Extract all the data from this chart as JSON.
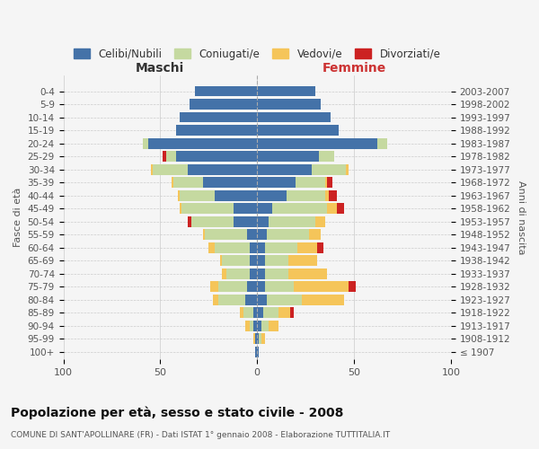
{
  "age_groups": [
    "100+",
    "95-99",
    "90-94",
    "85-89",
    "80-84",
    "75-79",
    "70-74",
    "65-69",
    "60-64",
    "55-59",
    "50-54",
    "45-49",
    "40-44",
    "35-39",
    "30-34",
    "25-29",
    "20-24",
    "15-19",
    "10-14",
    "5-9",
    "0-4"
  ],
  "birth_years": [
    "≤ 1907",
    "1908-1912",
    "1913-1917",
    "1918-1922",
    "1923-1927",
    "1928-1932",
    "1933-1937",
    "1938-1942",
    "1943-1947",
    "1948-1952",
    "1953-1957",
    "1958-1962",
    "1963-1967",
    "1968-1972",
    "1973-1977",
    "1978-1982",
    "1983-1987",
    "1988-1992",
    "1993-1997",
    "1998-2002",
    "2003-2007"
  ],
  "maschi": {
    "celibi": [
      1,
      1,
      2,
      2,
      6,
      5,
      4,
      4,
      4,
      5,
      12,
      12,
      22,
      28,
      36,
      42,
      56,
      42,
      40,
      35,
      32
    ],
    "coniugati": [
      0,
      0,
      2,
      5,
      14,
      15,
      12,
      14,
      18,
      22,
      22,
      27,
      18,
      15,
      18,
      5,
      3,
      0,
      0,
      0,
      0
    ],
    "vedovi": [
      0,
      1,
      2,
      2,
      3,
      4,
      2,
      1,
      3,
      1,
      0,
      1,
      1,
      1,
      1,
      0,
      0,
      0,
      0,
      0,
      0
    ],
    "divorziati": [
      0,
      0,
      0,
      0,
      0,
      0,
      0,
      0,
      0,
      0,
      2,
      0,
      0,
      0,
      0,
      2,
      0,
      0,
      0,
      0,
      0
    ]
  },
  "femmine": {
    "nubili": [
      1,
      1,
      2,
      3,
      5,
      4,
      4,
      4,
      4,
      5,
      6,
      8,
      15,
      20,
      28,
      32,
      62,
      42,
      38,
      33,
      30
    ],
    "coniugate": [
      0,
      1,
      4,
      8,
      18,
      15,
      12,
      12,
      17,
      22,
      24,
      28,
      20,
      15,
      18,
      8,
      5,
      0,
      0,
      0,
      0
    ],
    "vedove": [
      0,
      2,
      5,
      6,
      22,
      28,
      20,
      15,
      10,
      6,
      5,
      5,
      2,
      1,
      1,
      0,
      0,
      0,
      0,
      0,
      0
    ],
    "divorziate": [
      0,
      0,
      0,
      2,
      0,
      4,
      0,
      0,
      3,
      0,
      0,
      4,
      4,
      3,
      0,
      0,
      0,
      0,
      0,
      0,
      0
    ]
  },
  "colors": {
    "celibi": "#4472a8",
    "coniugati": "#c5d9a0",
    "vedovi": "#f5c55a",
    "divorziati": "#cc2222"
  },
  "xlim": 100,
  "title": "Popolazione per età, sesso e stato civile - 2008",
  "subtitle": "COMUNE DI SANT'APOLLINARE (FR) - Dati ISTAT 1° gennaio 2008 - Elaborazione TUTTITALIA.IT",
  "xlabel_left": "Maschi",
  "xlabel_right": "Femmine",
  "ylabel_left": "Fasce di età",
  "ylabel_right": "Anni di nascita",
  "legend_labels": [
    "Celibi/Nubili",
    "Coniugati/e",
    "Vedovi/e",
    "Divorziati/e"
  ],
  "bg_color": "#f5f5f5",
  "grid_color": "#cccccc",
  "text_color": "#555555",
  "maschi_color": "#333333",
  "femmine_color": "#cc3333"
}
